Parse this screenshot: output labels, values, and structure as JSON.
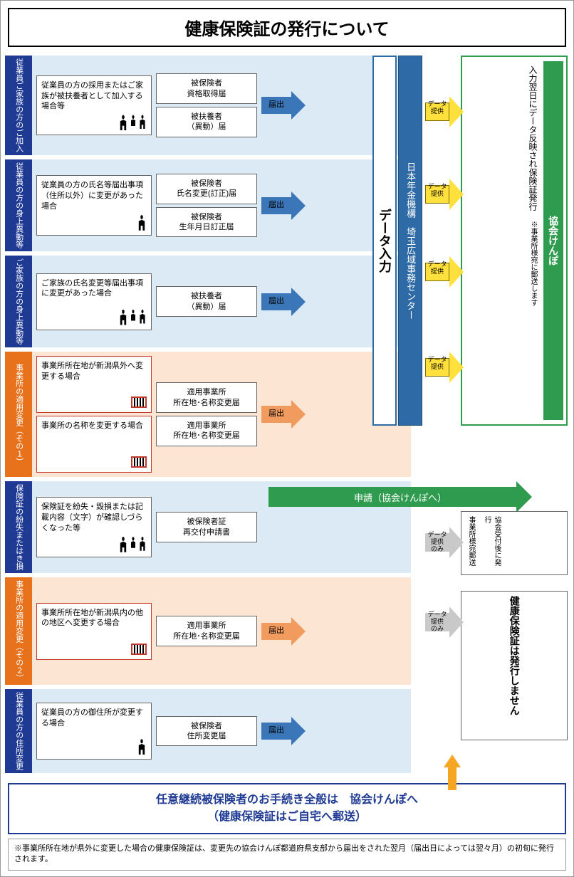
{
  "title": "健康保険証の発行について",
  "colors": {
    "blue_dark": "#1f3a93",
    "blue_mid": "#2d6aa6",
    "blue_arrow": "#3a76b8",
    "light_blue_bg": "#dceaf5",
    "orange": "#e8711c",
    "orange_arrow": "#f29b5f",
    "light_orange_bg": "#fde5d4",
    "green": "#2e9b4f",
    "yellow": "#ffe03d",
    "grey_arrow": "#b9b9b9",
    "red": "#c0392b"
  },
  "arrow_label_submit": "届出",
  "arrow_label_data": "データ\n提供",
  "arrow_label_data_only": "データ\n提供\nのみ",
  "pillar_input": "データ入力",
  "pillar_nenkin": "日本年金機構　埼玉広域事務センター",
  "rows": [
    {
      "key": "r1",
      "label": "従業員\nご家族の方\nのご加入",
      "label_bg": "blue",
      "desc": "従業員の方の採用またはご家族が被扶養者として加入する\n場合等",
      "icons": "family",
      "forms": [
        "被保険者\n資格取得届",
        "被扶養者\n（異動）届"
      ],
      "bg": "lb",
      "arrow": "blue",
      "r_arrow": "yellow"
    },
    {
      "key": "r2",
      "label": "従業員の方の\n身上異動等",
      "label_bg": "blue",
      "desc": "従業員の方の氏名等届出事項（住所以外）に変更があった場合",
      "icons": "one",
      "forms": [
        "被保険者\n氏名変更(訂正)届",
        "被保険者\n生年月日訂正届"
      ],
      "bg": "lb",
      "arrow": "blue",
      "r_arrow": "yellow"
    },
    {
      "key": "r3",
      "label": "ご家族の方の\n身上異動等",
      "label_bg": "blue",
      "desc": "ご家族の氏名変更等届出事項に変更があった場合",
      "icons": "family",
      "forms": [
        "被扶養者\n（異動）届"
      ],
      "bg": "lb",
      "arrow": "blue",
      "r_arrow": "yellow"
    },
    {
      "key": "r4",
      "label": "事業所の適用\n変更（その１）",
      "label_bg": "orange",
      "desc_a": "事業所所在地が新潟県外へ変更する場合",
      "desc_b": "事業所の名称を変更する場合",
      "icons": "building-red",
      "forms": [
        "適用事業所\n所在地･名称変更届",
        "適用事業所\n所在地･名称変更届"
      ],
      "bg": "lo",
      "arrow": "orange",
      "r_arrow": "yellow"
    },
    {
      "key": "r5",
      "label": "保険証の\n紛失また\nはき損",
      "label_bg": "blue",
      "desc": "保険証を紛失・毀損または記載内容（文字）が確認しづらくなった等",
      "icons": "family",
      "forms": [
        "被保険者証\n再交付申請書"
      ],
      "bg": "lb",
      "arrow": "green-long",
      "green_text": "申請（協会けんぽへ）"
    },
    {
      "key": "r6",
      "label": "事業所の適用\n変更（その２）",
      "label_bg": "orange",
      "desc": "事業所所在地が新潟県内の他の地区へ変更する場合",
      "icons": "building-red",
      "forms": [
        "適用事業所\n所在地･名称変更届"
      ],
      "bg": "lo",
      "arrow": "orange",
      "r_arrow": "grey"
    },
    {
      "key": "r7",
      "label": "従業員の方の\n住所変更",
      "label_bg": "blue",
      "desc": "従業員の方の御住所が変更する場合",
      "icons": "one",
      "forms": [
        "被保険者\n住所変更届"
      ],
      "bg": "lb",
      "arrow": "blue",
      "r_arrow": "grey"
    }
  ],
  "green_box": {
    "strip": "協会けんぽ",
    "msg": "入力翌日にデータ反映され保険証発行",
    "sub": "※事業所様宛に郵送します",
    "height_rows": 4
  },
  "note_box_mid": {
    "col1": "協会受付後に発行",
    "col2": "事業所様宛郵送"
  },
  "note_box_bottom": {
    "msg": "健康保険証は発行しません"
  },
  "blue_note": "任意継続被保険者のお手続き全般は　協会けんぽへ\n（健康保険証はご自宅へ郵送）",
  "footnote": "※事業所所在地が県外に変更した場合の健康保険証は、変更先の協会けんぽ都道府県支部から届出をされた翌月（届出日によっては翌々月）の初旬に発行されます。"
}
